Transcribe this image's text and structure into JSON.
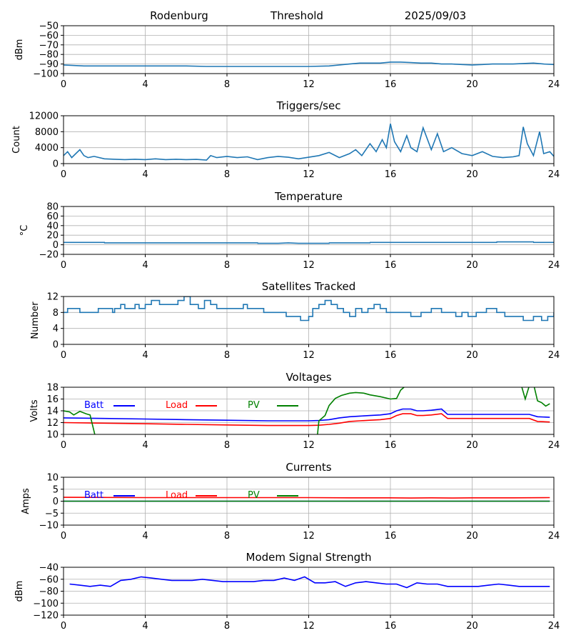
{
  "header": {
    "station": "Rodenburg",
    "mode": "Threshold",
    "date": "2025/09/03"
  },
  "colors": {
    "default_series": "#1f77b4",
    "batt": "#0000ff",
    "load": "#ff0000",
    "pv": "#008000",
    "grid": "#b0b0b0"
  },
  "chart_data": [
    {
      "id": "threshold",
      "type": "line",
      "title": "",
      "xlabel": "",
      "ylabel": "dBm",
      "xlim": [
        0,
        24
      ],
      "ylim": [
        -100,
        -50
      ],
      "xticks": [
        0,
        4,
        8,
        12,
        16,
        20,
        24
      ],
      "yticks": [
        -100,
        -90,
        -80,
        -70,
        -60,
        -50
      ],
      "grid": true,
      "series": [
        {
          "color": "#1f77b4",
          "x": [
            0,
            1,
            2,
            3,
            4,
            5,
            6,
            7,
            8,
            9,
            10,
            11,
            12,
            13,
            13.5,
            14,
            14.5,
            15,
            15.5,
            16,
            16.5,
            17,
            17.5,
            18,
            18.5,
            19,
            19.5,
            20,
            20.5,
            21,
            21.5,
            22,
            22.5,
            23,
            23.5,
            24
          ],
          "y": [
            -91,
            -92,
            -92,
            -92,
            -92,
            -92,
            -92,
            -92.5,
            -92.5,
            -92.5,
            -92.5,
            -92.5,
            -92.5,
            -92,
            -91,
            -90,
            -89,
            -89,
            -89,
            -88,
            -88,
            -88.5,
            -89,
            -89,
            -90,
            -90,
            -90.5,
            -91,
            -90.5,
            -90,
            -90,
            -90,
            -89.5,
            -89,
            -90,
            -90.5
          ]
        }
      ]
    },
    {
      "id": "triggers",
      "type": "line",
      "title": "Triggers/sec",
      "xlabel": "",
      "ylabel": "Count",
      "xlim": [
        0,
        24
      ],
      "ylim": [
        0,
        12000
      ],
      "xticks": [
        0,
        4,
        8,
        12,
        16,
        20,
        24
      ],
      "yticks": [
        0,
        4000,
        8000,
        12000
      ],
      "grid": true,
      "series": [
        {
          "color": "#1f77b4",
          "x": [
            0,
            0.2,
            0.4,
            0.6,
            0.8,
            1,
            1.2,
            1.5,
            2,
            2.5,
            3,
            3.5,
            4,
            4.5,
            5,
            5.5,
            6,
            6.5,
            7,
            7.2,
            7.5,
            8,
            8.5,
            9,
            9.5,
            10,
            10.5,
            11,
            11.5,
            12,
            12.5,
            13,
            13.5,
            14,
            14.3,
            14.6,
            15,
            15.3,
            15.6,
            15.8,
            16,
            16.2,
            16.5,
            16.8,
            17,
            17.3,
            17.6,
            18,
            18.3,
            18.6,
            19,
            19.5,
            20,
            20.5,
            21,
            21.5,
            22,
            22.3,
            22.5,
            22.7,
            23,
            23.3,
            23.5,
            23.8,
            24
          ],
          "y": [
            2000,
            3000,
            1500,
            2500,
            3500,
            2000,
            1500,
            1800,
            1200,
            1100,
            1000,
            1100,
            1000,
            1200,
            1000,
            1100,
            1000,
            1050,
            900,
            2000,
            1500,
            1800,
            1500,
            1700,
            1000,
            1500,
            1800,
            1600,
            1200,
            1600,
            2000,
            2800,
            1500,
            2500,
            3500,
            2000,
            5000,
            3000,
            6000,
            4000,
            10000,
            5500,
            3000,
            7000,
            4000,
            3000,
            9000,
            3500,
            7500,
            3000,
            4000,
            2500,
            2000,
            3000,
            1800,
            1500,
            1700,
            2000,
            9200,
            5000,
            2000,
            8000,
            2500,
            3000,
            1800
          ]
        }
      ]
    },
    {
      "id": "temperature",
      "type": "line",
      "title": "Temperature",
      "xlabel": "",
      "ylabel": "°C",
      "xlim": [
        0,
        24
      ],
      "ylim": [
        -20,
        80
      ],
      "xticks": [
        0,
        4,
        8,
        12,
        16,
        20,
        24
      ],
      "yticks": [
        -20,
        0,
        20,
        40,
        60,
        80
      ],
      "grid": true,
      "series": [
        {
          "color": "#1f77b4",
          "x": [
            0,
            2,
            2.01,
            9.5,
            9.51,
            10.5,
            11,
            11.5,
            12,
            13,
            13.01,
            15,
            15.01,
            19,
            21.2,
            21.21,
            23,
            23.01,
            24
          ],
          "y": [
            5,
            5,
            4,
            4,
            3,
            3,
            4,
            3,
            3,
            3,
            4,
            4,
            5,
            5,
            5,
            6,
            6,
            5,
            5
          ]
        }
      ]
    },
    {
      "id": "satellites",
      "type": "line",
      "title": "Satellites Tracked",
      "xlabel": "",
      "ylabel": "Number",
      "xlim": [
        0,
        24
      ],
      "ylim": [
        0,
        12
      ],
      "xticks": [
        0,
        4,
        8,
        12,
        16,
        20,
        24
      ],
      "yticks": [
        0,
        4,
        8,
        12
      ],
      "grid": true,
      "series": [
        {
          "color": "#1f77b4",
          "step": true,
          "x": [
            0,
            0.2,
            0.3,
            0.8,
            1.7,
            2.4,
            2.5,
            2.8,
            3,
            3.5,
            3.7,
            4,
            4.3,
            4.7,
            5.6,
            5.9,
            6.2,
            6.6,
            6.9,
            7.2,
            7.5,
            7.8,
            8,
            8.8,
            9,
            9.8,
            10.3,
            10.9,
            11.3,
            11.6,
            12,
            12.2,
            12.5,
            12.8,
            13.1,
            13.4,
            13.7,
            14,
            14.3,
            14.6,
            14.9,
            15.2,
            15.5,
            15.8,
            16,
            16.4,
            16.8,
            17,
            17.5,
            18,
            18.5,
            18.8,
            19.2,
            19.5,
            19.8,
            20.2,
            20.7,
            21.2,
            21.6,
            22,
            22.5,
            23,
            23.4,
            23.7,
            24
          ],
          "y": [
            8,
            9,
            9,
            8,
            9,
            8,
            9,
            10,
            9,
            10,
            9,
            10,
            11,
            10,
            11,
            12,
            10,
            9,
            11,
            10,
            9,
            9,
            9,
            10,
            9,
            8,
            8,
            7,
            7,
            6,
            7,
            9,
            10,
            11,
            10,
            9,
            8,
            7,
            9,
            8,
            9,
            10,
            9,
            8,
            8,
            8,
            8,
            7,
            8,
            9,
            8,
            8,
            7,
            8,
            7,
            8,
            9,
            8,
            7,
            7,
            6,
            7,
            6,
            7,
            8
          ]
        }
      ]
    },
    {
      "id": "voltages",
      "type": "line",
      "title": "Voltages",
      "xlabel": "",
      "ylabel": "Volts",
      "xlim": [
        0,
        24
      ],
      "ylim": [
        10,
        18
      ],
      "xticks": [
        0,
        4,
        8,
        12,
        16,
        20,
        24
      ],
      "yticks": [
        10,
        12,
        14,
        16,
        18
      ],
      "grid": true,
      "legend": "inline-top",
      "series": [
        {
          "name": "Batt",
          "color": "#0000ff",
          "x": [
            0,
            2,
            4,
            6,
            8,
            10,
            12,
            12.5,
            13,
            13.5,
            14,
            14.5,
            15,
            15.5,
            16,
            16.3,
            16.6,
            17,
            17.3,
            17.6,
            18,
            18.5,
            18.8,
            19,
            20,
            21,
            22,
            22.8,
            23.2,
            23.8
          ],
          "y": [
            12.8,
            12.7,
            12.6,
            12.5,
            12.4,
            12.3,
            12.3,
            12.35,
            12.5,
            12.8,
            13,
            13.1,
            13.2,
            13.3,
            13.5,
            14,
            14.3,
            14.3,
            14,
            14,
            14.1,
            14.3,
            13.4,
            13.4,
            13.4,
            13.4,
            13.4,
            13.4,
            13,
            12.9
          ]
        },
        {
          "name": "Load",
          "color": "#ff0000",
          "x": [
            0,
            2,
            4,
            6,
            8,
            10,
            12,
            12.5,
            13,
            13.5,
            14,
            14.5,
            15,
            15.5,
            16,
            16.3,
            16.6,
            17,
            17.3,
            17.6,
            18,
            18.5,
            18.8,
            19,
            20,
            21,
            22,
            22.8,
            23.2,
            23.8
          ],
          "y": [
            12,
            11.9,
            11.8,
            11.7,
            11.6,
            11.5,
            11.5,
            11.55,
            11.7,
            11.9,
            12.2,
            12.3,
            12.4,
            12.5,
            12.7,
            13.2,
            13.5,
            13.5,
            13.2,
            13.2,
            13.3,
            13.5,
            12.7,
            12.7,
            12.7,
            12.7,
            12.7,
            12.7,
            12.2,
            12.1
          ]
        },
        {
          "name": "PV",
          "color": "#008000",
          "x": [
            0,
            0.3,
            0.5,
            0.8,
            1.1,
            1.2,
            1.3,
            1.6,
            12.4,
            12.5,
            12.8,
            13,
            13.3,
            13.6,
            14,
            14.3,
            14.7,
            15,
            15.5,
            16,
            16.3,
            16.5,
            16.8,
            22.4,
            22.6,
            22.8,
            23,
            23.2,
            23.4,
            23.6,
            23.8
          ],
          "y": [
            14,
            13.8,
            13.3,
            13.9,
            13.5,
            13.4,
            13.3,
            9,
            9,
            12.3,
            13.2,
            14.9,
            16.1,
            16.6,
            17,
            17.1,
            17,
            16.7,
            16.4,
            16,
            16.1,
            17.5,
            18.4,
            18.4,
            16,
            18.3,
            18.6,
            15.7,
            15.4,
            14.8,
            15.2
          ]
        }
      ]
    },
    {
      "id": "currents",
      "type": "line",
      "title": "Currents",
      "xlabel": "",
      "ylabel": "Amps",
      "xlim": [
        0,
        24
      ],
      "ylim": [
        -10,
        10
      ],
      "xticks": [
        0,
        4,
        8,
        12,
        16,
        20,
        24
      ],
      "yticks": [
        -10,
        -5,
        0,
        5,
        10
      ],
      "grid": true,
      "legend": "inline-top",
      "series": [
        {
          "name": "Batt",
          "color": "#0000ff",
          "x": [
            0,
            23.8
          ],
          "y": [
            0,
            0
          ]
        },
        {
          "name": "Load",
          "color": "#ff0000",
          "x": [
            0,
            4,
            8,
            12,
            14,
            16,
            17,
            18,
            19,
            20,
            22,
            23.8
          ],
          "y": [
            1.6,
            1.5,
            1.5,
            1.5,
            1.4,
            1.4,
            1.3,
            1.4,
            1.3,
            1.4,
            1.4,
            1.5
          ]
        },
        {
          "name": "PV",
          "color": "#008000",
          "x": [
            0,
            23.8
          ],
          "y": [
            0,
            0
          ]
        }
      ]
    },
    {
      "id": "modem",
      "type": "line",
      "title": "Modem Signal Strength",
      "xlabel": "",
      "ylabel": "dBm",
      "xlim": [
        0,
        24
      ],
      "ylim": [
        -120,
        -40
      ],
      "xticks": [
        0,
        4,
        8,
        12,
        16,
        20,
        24
      ],
      "yticks": [
        -120,
        -100,
        -80,
        -60,
        -40
      ],
      "grid": true,
      "series": [
        {
          "color": "#0000ff",
          "x": [
            0.3,
            0.8,
            1.3,
            1.8,
            2.3,
            2.8,
            3.3,
            3.8,
            4.3,
            4.8,
            5.3,
            5.8,
            6.3,
            6.8,
            7.3,
            7.8,
            8.3,
            8.8,
            9.3,
            9.8,
            10.3,
            10.8,
            11.3,
            11.8,
            12.3,
            12.8,
            13.3,
            13.8,
            14.3,
            14.8,
            15.3,
            15.8,
            16.3,
            16.8,
            17.3,
            17.8,
            18.3,
            18.8,
            19.3,
            19.8,
            20.3,
            20.8,
            21.3,
            21.8,
            22.3,
            22.8,
            23.3,
            23.8
          ],
          "y": [
            -68,
            -70,
            -72,
            -70,
            -72,
            -62,
            -60,
            -56,
            -58,
            -60,
            -62,
            -62,
            -62,
            -60,
            -62,
            -64,
            -64,
            -64,
            -64,
            -62,
            -62,
            -58,
            -62,
            -56,
            -66,
            -66,
            -64,
            -72,
            -66,
            -64,
            -66,
            -68,
            -68,
            -74,
            -66,
            -68,
            -68,
            -72,
            -72,
            -72,
            -72,
            -70,
            -68,
            -70,
            -72,
            -72,
            -72,
            -72
          ]
        }
      ]
    }
  ]
}
